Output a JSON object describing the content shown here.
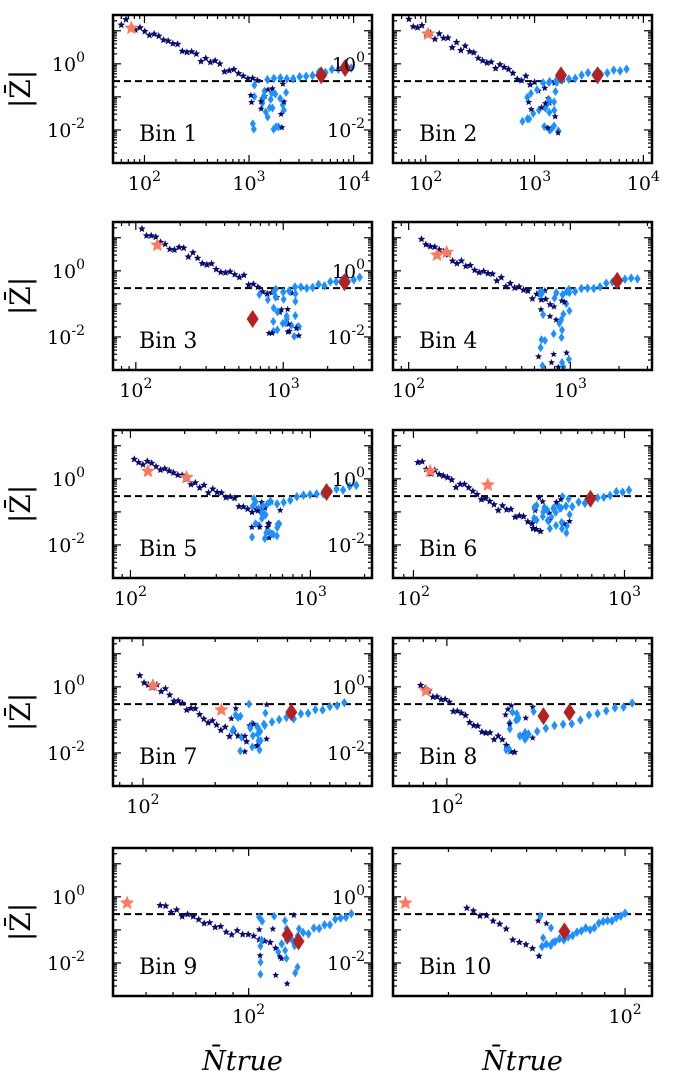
{
  "figure": {
    "ylabel": "|Z̄|",
    "xlabel": "N̄true",
    "threshold": 0.3,
    "colors": {
      "star": "#0b0b6e",
      "diamond": "#1e90ff",
      "big_star": "#fa7a5f",
      "big_diamond": "#b22222",
      "threshold": "#000000"
    }
  },
  "chart_data": [
    {
      "type": "scatter",
      "panel_label": "Bin 1",
      "xlim": [
        50,
        15000
      ],
      "ylim": [
        0.001,
        30
      ],
      "xscale": "log",
      "yscale": "log",
      "xticks": [
        {
          "v": 100,
          "t": "10^2"
        },
        {
          "v": 1000,
          "t": "10^3"
        },
        {
          "v": 10000,
          "t": "10^4"
        }
      ],
      "yticks": [
        {
          "v": 1,
          "t": "10^0"
        },
        {
          "v": 0.01,
          "t": "10^-2"
        }
      ],
      "star_trend": {
        "x_start": 60,
        "y_start": 20,
        "x_end": 1200,
        "y_end": 0.25,
        "n": 30
      },
      "diamond_trend": {
        "x_start": 1500,
        "y_start": 0.3,
        "x_end": 9500,
        "y_end": 0.8,
        "n": 14
      },
      "valley": {
        "x_center": 1500,
        "x_spread": 0.18,
        "y_min": 0.008,
        "n": 34
      },
      "big_stars": [
        [
          75,
          12
        ]
      ],
      "big_diamonds": [
        [
          4900,
          0.45
        ],
        [
          8300,
          0.75
        ]
      ]
    },
    {
      "type": "scatter",
      "panel_label": "Bin 2",
      "xlim": [
        50,
        12000
      ],
      "ylim": [
        0.001,
        30
      ],
      "xscale": "log",
      "yscale": "log",
      "xticks": [
        {
          "v": 100,
          "t": "10^2"
        },
        {
          "v": 1000,
          "t": "10^3"
        },
        {
          "v": 10000,
          "t": "10^4"
        }
      ],
      "yticks": [
        {
          "v": 1,
          "t": "10^0"
        },
        {
          "v": 0.01,
          "t": "10^-2"
        }
      ],
      "star_trend": {
        "x_start": 70,
        "y_start": 18,
        "x_end": 1000,
        "y_end": 0.25,
        "n": 30
      },
      "diamond_trend": {
        "x_start": 1200,
        "y_start": 0.3,
        "x_end": 7000,
        "y_end": 0.7,
        "n": 14
      },
      "valley": {
        "x_center": 1100,
        "x_spread": 0.18,
        "y_min": 0.008,
        "n": 34
      },
      "big_stars": [
        [
          105,
          8
        ]
      ],
      "big_diamonds": [
        [
          1750,
          0.45
        ],
        [
          3800,
          0.45
        ]
      ]
    },
    {
      "type": "scatter",
      "panel_label": "Bin 3",
      "xlim": [
        70,
        4000
      ],
      "ylim": [
        0.001,
        30
      ],
      "xscale": "log",
      "yscale": "log",
      "xticks": [
        {
          "v": 100,
          "t": "10^2"
        },
        {
          "v": 1000,
          "t": "10^3"
        }
      ],
      "yticks": [
        {
          "v": 1,
          "t": "10^0"
        },
        {
          "v": 0.01,
          "t": "10^-2"
        }
      ],
      "star_trend": {
        "x_start": 110,
        "y_start": 14,
        "x_end": 900,
        "y_end": 0.2,
        "n": 30
      },
      "diamond_trend": {
        "x_start": 1000,
        "y_start": 0.25,
        "x_end": 3300,
        "y_end": 0.6,
        "n": 14
      },
      "valley": {
        "x_center": 950,
        "x_spread": 0.14,
        "y_min": 0.01,
        "n": 34
      },
      "big_stars": [
        [
          140,
          6
        ]
      ],
      "big_diamonds": [
        [
          620,
          0.035
        ],
        [
          2600,
          0.45
        ]
      ]
    },
    {
      "type": "scatter",
      "panel_label": "Bin 4",
      "xlim": [
        80,
        3200
      ],
      "ylim": [
        0.001,
        30
      ],
      "xscale": "log",
      "yscale": "log",
      "xticks": [
        {
          "v": 100,
          "t": "10^2"
        },
        {
          "v": 1000,
          "t": "10^3"
        }
      ],
      "yticks": [
        {
          "v": 1,
          "t": "10^0"
        },
        {
          "v": 0.01,
          "t": "10^-2"
        }
      ],
      "star_trend": {
        "x_start": 120,
        "y_start": 7,
        "x_end": 750,
        "y_end": 0.1,
        "n": 30
      },
      "diamond_trend": {
        "x_start": 820,
        "y_start": 0.2,
        "x_end": 2600,
        "y_end": 0.6,
        "n": 14
      },
      "valley": {
        "x_center": 800,
        "x_spread": 0.1,
        "y_min": 0.001,
        "n": 34
      },
      "big_stars": [
        [
          150,
          3
        ],
        [
          172,
          3.6
        ]
      ],
      "big_diamonds": [
        [
          1950,
          0.5
        ]
      ]
    },
    {
      "type": "scatter",
      "panel_label": "Bin 5",
      "xlim": [
        80,
        2200
      ],
      "ylim": [
        0.001,
        30
      ],
      "xscale": "log",
      "yscale": "log",
      "xticks": [
        {
          "v": 100,
          "t": "10^2"
        },
        {
          "v": 1000,
          "t": "10^3"
        }
      ],
      "yticks": [
        {
          "v": 1,
          "t": "10^0"
        },
        {
          "v": 0.01,
          "t": "10^-2"
        }
      ],
      "star_trend": {
        "x_start": 105,
        "y_start": 4,
        "x_end": 530,
        "y_end": 0.1,
        "n": 30
      },
      "diamond_trend": {
        "x_start": 600,
        "y_start": 0.18,
        "x_end": 1800,
        "y_end": 0.6,
        "n": 14
      },
      "valley": {
        "x_center": 560,
        "x_spread": 0.09,
        "y_min": 0.01,
        "n": 34
      },
      "big_stars": [
        [
          125,
          1.7
        ],
        [
          205,
          1.1
        ]
      ],
      "big_diamonds": [
        [
          1230,
          0.4
        ]
      ]
    },
    {
      "type": "scatter",
      "panel_label": "Bin 6",
      "xlim": [
        80,
        1350
      ],
      "ylim": [
        0.001,
        30
      ],
      "xscale": "log",
      "yscale": "log",
      "xticks": [
        {
          "v": 100,
          "t": "10^2"
        },
        {
          "v": 1000,
          "t": "10^3"
        }
      ],
      "yticks": [
        {
          "v": 1,
          "t": "10^0"
        },
        {
          "v": 0.01,
          "t": "10^-2"
        }
      ],
      "star_trend": {
        "x_start": 105,
        "y_start": 3,
        "x_end": 400,
        "y_end": 0.03,
        "n": 30
      },
      "diamond_trend": {
        "x_start": 430,
        "y_start": 0.1,
        "x_end": 1050,
        "y_end": 0.45,
        "n": 14
      },
      "valley": {
        "x_center": 450,
        "x_spread": 0.09,
        "y_min": 0.02,
        "n": 34
      },
      "big_stars": [
        [
          120,
          1.7
        ],
        [
          225,
          0.65
        ]
      ],
      "big_diamonds": [
        [
          690,
          0.25
        ]
      ]
    },
    {
      "type": "scatter",
      "panel_label": "Bin 7",
      "xlim": [
        75,
        900
      ],
      "ylim": [
        0.001,
        30
      ],
      "xscale": "log",
      "yscale": "log",
      "xticks": [
        {
          "v": 100,
          "t": "10^2"
        }
      ],
      "yticks": [
        {
          "v": 1,
          "t": "10^0"
        },
        {
          "v": 0.01,
          "t": "10^-2"
        }
      ],
      "star_trend": {
        "x_start": 97,
        "y_start": 2,
        "x_end": 270,
        "y_end": 0.02,
        "n": 26
      },
      "diamond_trend": {
        "x_start": 280,
        "y_start": 0.05,
        "x_end": 690,
        "y_end": 0.35,
        "n": 14
      },
      "valley": {
        "x_center": 280,
        "x_spread": 0.08,
        "y_min": 0.01,
        "n": 28
      },
      "big_stars": [
        [
          110,
          1.1
        ],
        [
          212,
          0.2
        ]
      ],
      "big_diamonds": [
        [
          415,
          0.17
        ]
      ]
    },
    {
      "type": "scatter",
      "panel_label": "Bin 8",
      "xlim": [
        60,
        700
      ],
      "ylim": [
        0.001,
        30
      ],
      "xscale": "log",
      "yscale": "log",
      "xticks": [
        {
          "v": 100,
          "t": "10^2"
        }
      ],
      "yticks": [
        {
          "v": 1,
          "t": "10^0"
        },
        {
          "v": 0.01,
          "t": "10^-2"
        }
      ],
      "star_trend": {
        "x_start": 78,
        "y_start": 1.2,
        "x_end": 190,
        "y_end": 0.011,
        "n": 24
      },
      "diamond_trend": {
        "x_start": 200,
        "y_start": 0.03,
        "x_end": 580,
        "y_end": 0.3,
        "n": 14
      },
      "valley": {
        "x_center": 200,
        "x_spread": 0.06,
        "y_min": 0.01,
        "n": 22
      },
      "big_stars": [
        [
          82,
          0.75
        ]
      ],
      "big_diamonds": [
        [
          250,
          0.13
        ],
        [
          320,
          0.17
        ]
      ]
    },
    {
      "type": "scatter",
      "panel_label": "Bin 9",
      "xlim": [
        40,
        230
      ],
      "ylim": [
        0.001,
        30
      ],
      "xscale": "log",
      "yscale": "log",
      "xticks": [
        {
          "v": 100,
          "t": "10^2"
        }
      ],
      "yticks": [
        {
          "v": 1,
          "t": "10^0"
        },
        {
          "v": 0.01,
          "t": "10^-2"
        }
      ],
      "star_trend": {
        "x_start": 55,
        "y_start": 0.6,
        "x_end": 120,
        "y_end": 0.03,
        "n": 22
      },
      "diamond_trend": {
        "x_start": 125,
        "y_start": 0.04,
        "x_end": 200,
        "y_end": 0.3,
        "n": 14
      },
      "valley": {
        "x_center": 123,
        "x_spread": 0.06,
        "y_min": 0.002,
        "n": 26
      },
      "big_stars": [
        [
          44,
          0.65
        ]
      ],
      "big_diamonds": [
        [
          130,
          0.07
        ],
        [
          140,
          0.045
        ]
      ]
    },
    {
      "type": "scatter",
      "panel_label": "Bin 10",
      "xlim": [
        30,
        115
      ],
      "ylim": [
        0.001,
        30
      ],
      "xscale": "log",
      "yscale": "log",
      "xticks": [
        {
          "v": 100,
          "t": "10^2"
        }
      ],
      "yticks": [
        {
          "v": 1,
          "t": "10^0"
        },
        {
          "v": 0.01,
          "t": "10^-2"
        }
      ],
      "star_trend": {
        "x_start": 44,
        "y_start": 0.5,
        "x_end": 64,
        "y_end": 0.02,
        "n": 12
      },
      "diamond_trend": {
        "x_start": 65,
        "y_start": 0.03,
        "x_end": 100,
        "y_end": 0.3,
        "n": 20
      },
      "valley": {
        "x_center": 66,
        "x_spread": 0.02,
        "y_min": 0.02,
        "n": 6
      },
      "big_stars": [
        [
          32,
          0.65
        ]
      ],
      "big_diamonds": [
        [
          73,
          0.09
        ]
      ]
    }
  ]
}
